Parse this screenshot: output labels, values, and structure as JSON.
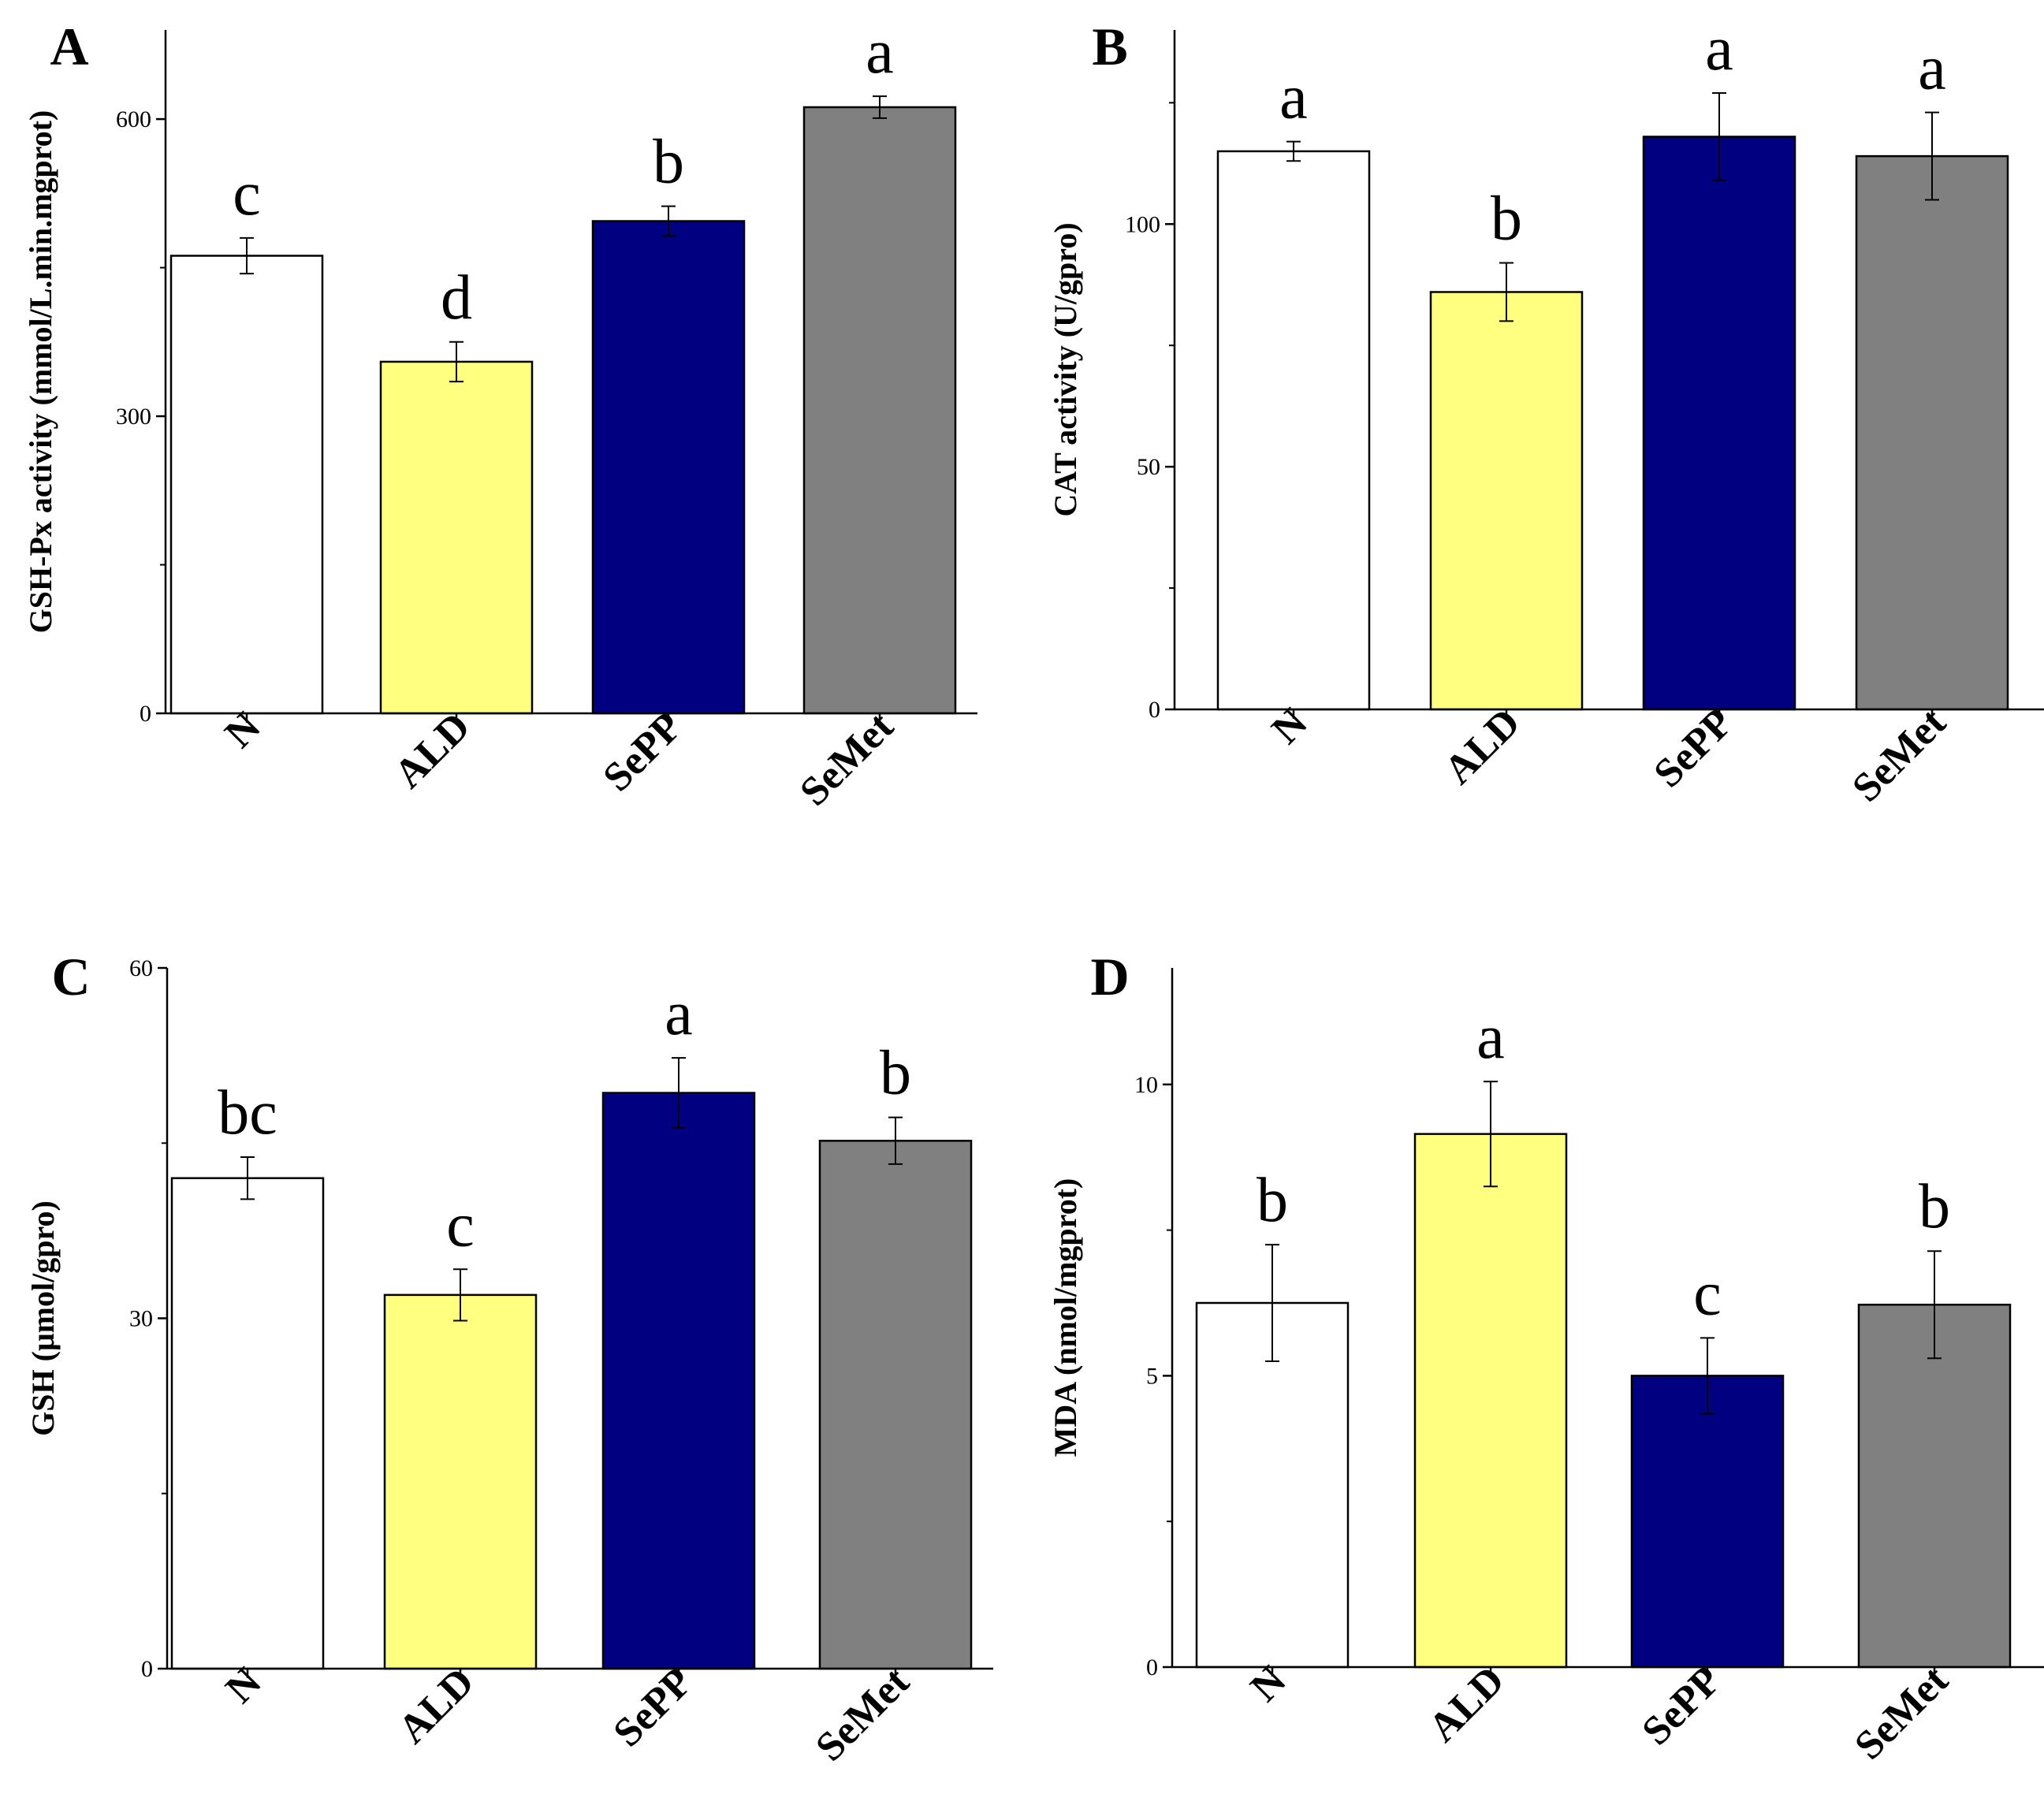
{
  "colors": {
    "N": "#ffffff",
    "ALD": "#ffff80",
    "SePP": "#000080",
    "SeMet": "#808080",
    "axis": "#000000"
  },
  "chart_data": [
    {
      "panel": "A",
      "type": "bar",
      "categories": [
        "N",
        "ALD",
        "SePP",
        "SeMet"
      ],
      "values": [
        462,
        355,
        497,
        612
      ],
      "errors": [
        18,
        20,
        15,
        11
      ],
      "significance": [
        "c",
        "d",
        "b",
        "a"
      ],
      "ylabel": "GSH-Px activity (mmol/L.min.mgprot)",
      "xlabel": "",
      "ylim": [
        0,
        690
      ],
      "yticks": [
        0,
        300,
        600
      ],
      "yminor": [
        150,
        450
      ]
    },
    {
      "panel": "B",
      "type": "bar",
      "categories": [
        "N",
        "ALD",
        "SePP",
        "SeMet"
      ],
      "values": [
        115,
        86,
        118,
        114
      ],
      "errors": [
        2,
        6,
        9,
        9
      ],
      "significance": [
        "a",
        "b",
        "a",
        "a"
      ],
      "ylabel": "CAT activity (U/gpro)",
      "xlabel": "",
      "ylim": [
        0,
        140
      ],
      "yticks": [
        0,
        50,
        100
      ],
      "yminor": [
        25,
        75,
        125
      ]
    },
    {
      "panel": "C",
      "type": "bar",
      "categories": [
        "N",
        "ALD",
        "SePP",
        "SeMet"
      ],
      "values": [
        42,
        32,
        49.3,
        45.2
      ],
      "errors": [
        1.8,
        2.2,
        3.0,
        2.0
      ],
      "significance": [
        "bc",
        "c",
        "a",
        "b"
      ],
      "ylabel": "GSH (μmol/gpro)",
      "xlabel": "",
      "ylim": [
        0,
        60
      ],
      "yticks": [
        0,
        30,
        60
      ],
      "yminor": [
        15,
        45
      ]
    },
    {
      "panel": "D",
      "type": "bar",
      "categories": [
        "N",
        "ALD",
        "SePP",
        "SeMet"
      ],
      "values": [
        6.25,
        9.15,
        5.0,
        6.22
      ],
      "errors": [
        1.0,
        0.9,
        0.65,
        0.92
      ],
      "significance": [
        "b",
        "a",
        "c",
        "b"
      ],
      "ylabel": "MDA (nmol/mgprot)",
      "xlabel": "",
      "ylim": [
        0,
        12
      ],
      "yticks": [
        0,
        5,
        10
      ],
      "yminor": [
        2.5,
        7.5
      ]
    }
  ]
}
